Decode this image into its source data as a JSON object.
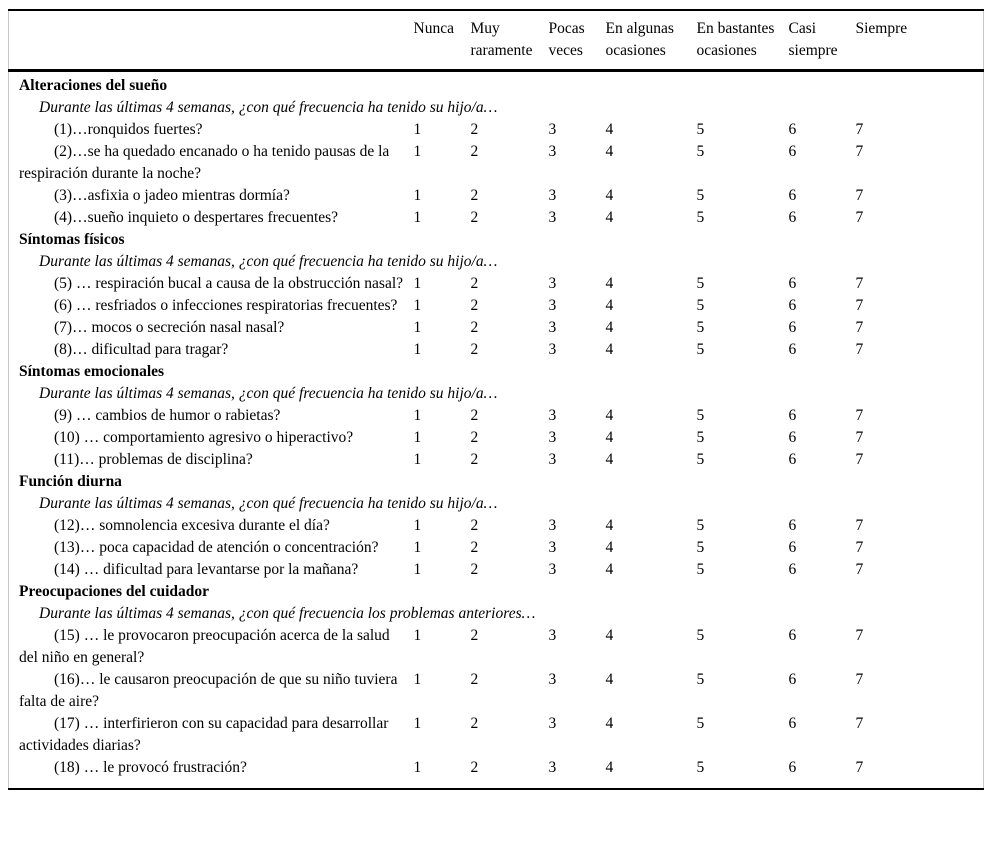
{
  "table": {
    "scale_headers": [
      "Nunca",
      "Muy raramente",
      "Pocas veces",
      "En algunas ocasiones",
      "En bastantes ocasiones",
      "Casi siempre",
      "Siempre"
    ],
    "scale_values": [
      "1",
      "2",
      "3",
      "4",
      "5",
      "6",
      "7"
    ],
    "sections": [
      {
        "title": "Alteraciones del sueño",
        "prompt": "Durante las últimas 4 semanas, ¿con qué frecuencia ha tenido su hijo/a…",
        "items": [
          "(1)…ronquidos fuertes?",
          "(2)…se ha quedado encanado o ha tenido pausas de la respiración durante la noche?",
          "(3)…asfixia o jadeo mientras dormía?",
          "(4)…sueño inquieto o despertares frecuentes?"
        ]
      },
      {
        "title": "Síntomas físicos",
        "prompt": "Durante las últimas 4 semanas, ¿con qué frecuencia ha tenido su hijo/a…",
        "items": [
          "(5) … respiración bucal a causa de la obstrucción nasal?",
          "(6) … resfriados o infecciones respiratorias frecuentes?",
          "(7)… mocos o secreción nasal nasal?",
          "(8)… dificultad para tragar?"
        ]
      },
      {
        "title": "Síntomas emocionales",
        "prompt": "Durante las últimas 4 semanas, ¿con qué frecuencia ha tenido su hijo/a…",
        "items": [
          "(9) … cambios de humor o rabietas?",
          "(10) … comportamiento agresivo o hiperactivo?",
          "(11)… problemas de disciplina?"
        ]
      },
      {
        "title": "Función diurna",
        "prompt": "Durante las últimas 4 semanas, ¿con qué frecuencia ha tenido su hijo/a…",
        "items": [
          "(12)… somnolencia excesiva durante el día?",
          "(13)… poca capacidad de atención o concentración?",
          "(14) … dificultad para levantarse por la mañana?"
        ]
      },
      {
        "title": "Preocupaciones del cuidador",
        "prompt": "Durante las últimas 4 semanas, ¿con qué frecuencia los problemas anteriores…",
        "items": [
          "(15) … le provocaron preocupación acerca de la salud del niño en general?",
          "(16)… le causaron preocupación de que su niño tuviera falta de aire?",
          "(17) … interfirieron con su capacidad para desarrollar actividades diarias?",
          "(18) … le provocó frustración?"
        ]
      }
    ],
    "colors": {
      "text": "#000000",
      "rule": "#000000",
      "side_border": "#c9c9c9",
      "background": "#ffffff"
    }
  }
}
